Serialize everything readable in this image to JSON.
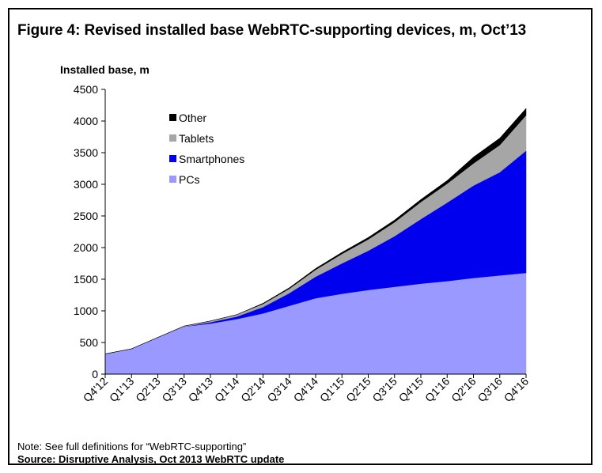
{
  "figure": {
    "title": "Figure 4: Revised installed base WebRTC-supporting devices, m, Oct’13",
    "note": "Note: See full definitions for “WebRTC-supporting”",
    "source": "Source: Disruptive Analysis, Oct 2013 WebRTC update"
  },
  "chart_data": {
    "type": "area",
    "stacked": true,
    "ylabel": "Installed base, m",
    "xlabel": "",
    "ylim": [
      0,
      4500
    ],
    "yticks": [
      0,
      500,
      1000,
      1500,
      2000,
      2500,
      3000,
      3500,
      4000,
      4500
    ],
    "grid": false,
    "legend_position": "top-left",
    "categories": [
      "Q4'12",
      "Q1'13",
      "Q2'13",
      "Q3'13",
      "Q4'13",
      "Q1'14",
      "Q2'14",
      "Q3'14",
      "Q4'14",
      "Q1'15",
      "Q2'15",
      "Q3'15",
      "Q4'15",
      "Q1'16",
      "Q2'16",
      "Q3'16",
      "Q4'16"
    ],
    "series": [
      {
        "name": "PCs",
        "color": "#9999ff",
        "values": [
          320,
          400,
          580,
          750,
          800,
          870,
          960,
          1080,
          1200,
          1270,
          1330,
          1380,
          1430,
          1470,
          1520,
          1560,
          1600
        ]
      },
      {
        "name": "Smartphones",
        "color": "#0000ee",
        "values": [
          0,
          0,
          0,
          0,
          20,
          40,
          100,
          200,
          340,
          480,
          620,
          800,
          1020,
          1240,
          1460,
          1630,
          1930
        ]
      },
      {
        "name": "Tablets",
        "color": "#a6a6a6",
        "values": [
          0,
          0,
          0,
          10,
          20,
          30,
          50,
          70,
          110,
          150,
          180,
          220,
          270,
          300,
          350,
          430,
          560
        ]
      },
      {
        "name": "Other",
        "color": "#000000",
        "values": [
          0,
          0,
          0,
          0,
          0,
          0,
          10,
          15,
          20,
          25,
          30,
          35,
          40,
          50,
          100,
          110,
          110
        ]
      }
    ]
  }
}
